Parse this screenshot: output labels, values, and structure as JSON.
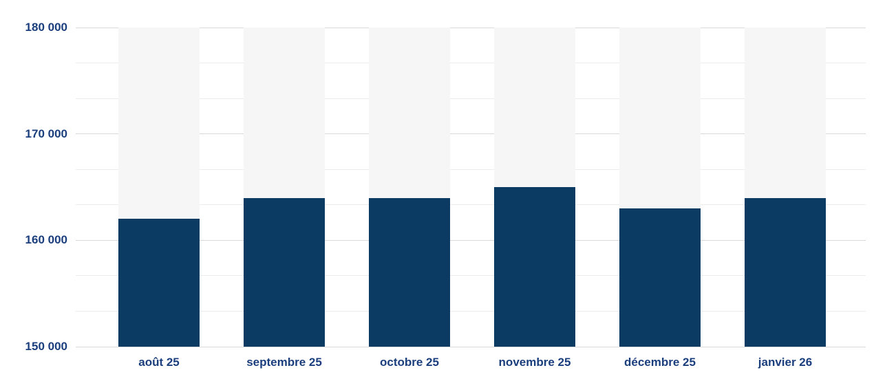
{
  "chart_data": {
    "type": "bar",
    "title": "",
    "categories": [
      "août 25",
      "septembre 25",
      "octobre 25",
      "novembre 25",
      "décembre 25",
      "janvier 26"
    ],
    "values": [
      162000,
      164000,
      164000,
      165000,
      163000,
      164000
    ],
    "xlabel": "",
    "ylabel": "",
    "ylim": [
      150000,
      180000
    ],
    "y_ticks": [
      {
        "value": 180000,
        "label": "180 000"
      },
      {
        "value": 170000,
        "label": "170 000"
      },
      {
        "value": 160000,
        "label": "160 000"
      },
      {
        "value": 150000,
        "label": "150 000"
      }
    ],
    "minor_gridlines_per_major_interval": 3,
    "grid": true,
    "legend": false,
    "colors": {
      "bar": "#0b3a63",
      "column_background": "#f6f6f7",
      "axis_label": "#1b3e7d",
      "gridline_major": "#d9d9d9",
      "gridline_minor": "#ececec",
      "background": "#ffffff"
    }
  }
}
